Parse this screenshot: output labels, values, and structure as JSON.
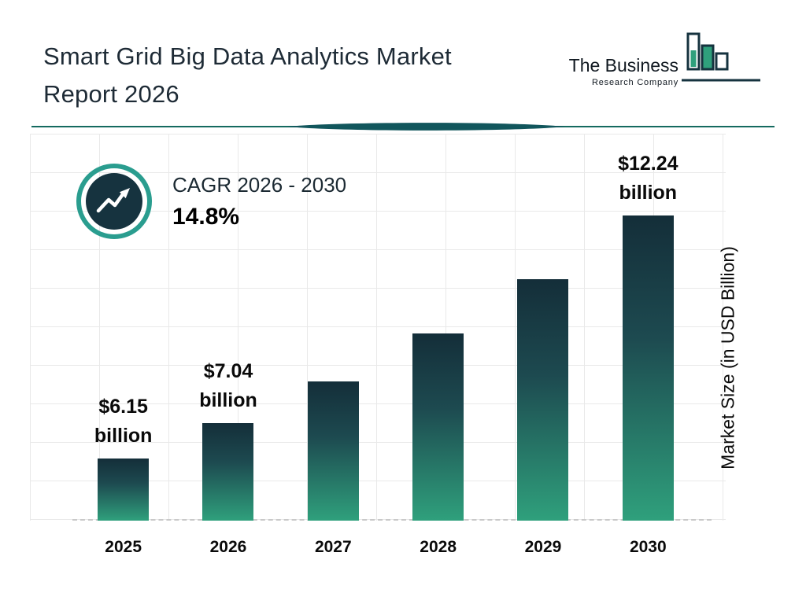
{
  "header": {
    "title_line1": "Smart Grid Big Data Analytics Market",
    "title_line2": "Report 2026",
    "logo": {
      "name_line1": "The Business",
      "name_line2": "Research Company"
    }
  },
  "cagr": {
    "label": "CAGR 2026 - 2030",
    "value": "14.8%"
  },
  "y_axis_label": "Market Size (in USD Billion)",
  "colors": {
    "dark_navy": "#16333f",
    "teal": "#2a9d8f",
    "bar_top": "#142e39",
    "bar_bottom": "#2fa07c",
    "divider": "#156a60"
  },
  "chart_data": {
    "type": "bar",
    "title": "Smart Grid Big Data Analytics Market Report 2026",
    "ylabel": "Market Size (in USD Billion)",
    "unit": "USD Billion",
    "categories": [
      "2025",
      "2026",
      "2027",
      "2028",
      "2029",
      "2030"
    ],
    "values": [
      6.15,
      7.04,
      8.08,
      9.28,
      10.65,
      12.24
    ],
    "ylim": [
      4.6,
      12.24
    ],
    "grid": true,
    "bars": [
      {
        "year": "2025",
        "value": 6.15,
        "label_value": "$6.15",
        "label_unit": "billion"
      },
      {
        "year": "2026",
        "value": 7.04,
        "label_value": "$7.04",
        "label_unit": "billion"
      },
      {
        "year": "2027",
        "value": 8.08,
        "label_value": "",
        "label_unit": ""
      },
      {
        "year": "2028",
        "value": 9.28,
        "label_value": "",
        "label_unit": ""
      },
      {
        "year": "2029",
        "value": 10.65,
        "label_value": "",
        "label_unit": ""
      },
      {
        "year": "2030",
        "value": 12.24,
        "label_value": "$12.24",
        "label_unit": "billion"
      }
    ]
  }
}
